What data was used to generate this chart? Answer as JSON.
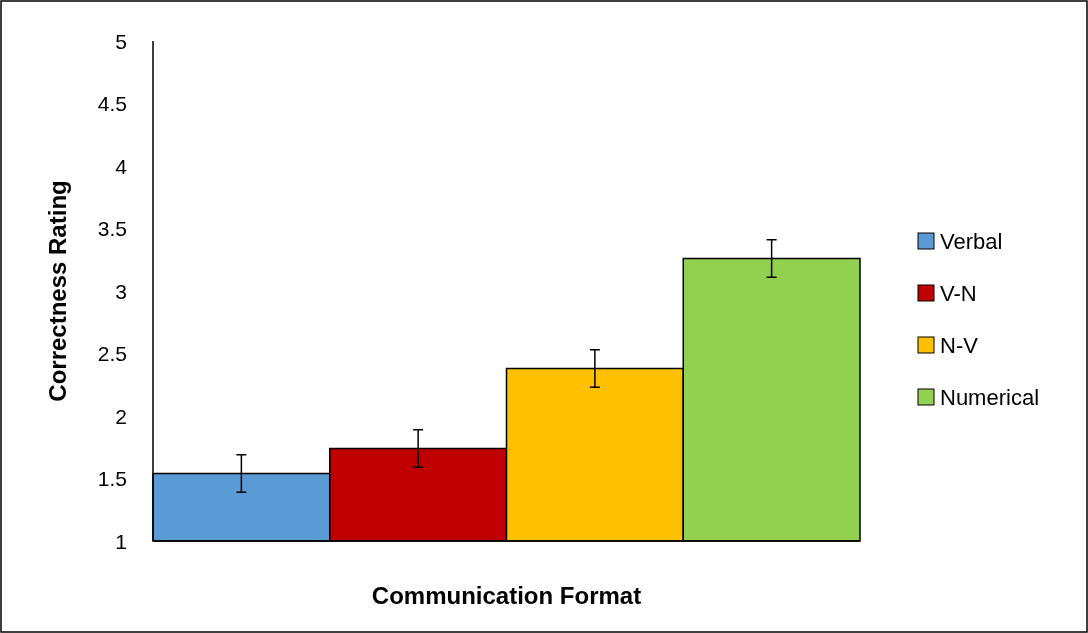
{
  "chart_data": {
    "type": "bar",
    "xlabel": "Communication Format",
    "ylabel": "Correctness Rating",
    "categories": [
      null
    ],
    "series": [
      {
        "name": "Verbal",
        "color": "#5b9bd5",
        "values": [
          1.54
        ],
        "errors": [
          0.15
        ]
      },
      {
        "name": "V-N",
        "color": "#c00000",
        "values": [
          1.74
        ],
        "errors": [
          0.15
        ]
      },
      {
        "name": "N-V",
        "color": "#ffc000",
        "values": [
          2.38
        ],
        "errors": [
          0.15
        ]
      },
      {
        "name": "Numerical",
        "color": "#92d050",
        "values": [
          3.26
        ],
        "errors": [
          0.15
        ]
      }
    ],
    "ylim": [
      1,
      5
    ],
    "yticks": [
      1,
      1.5,
      2,
      2.5,
      3,
      3.5,
      4,
      4.5,
      5
    ],
    "legend": "right",
    "grid": false
  }
}
